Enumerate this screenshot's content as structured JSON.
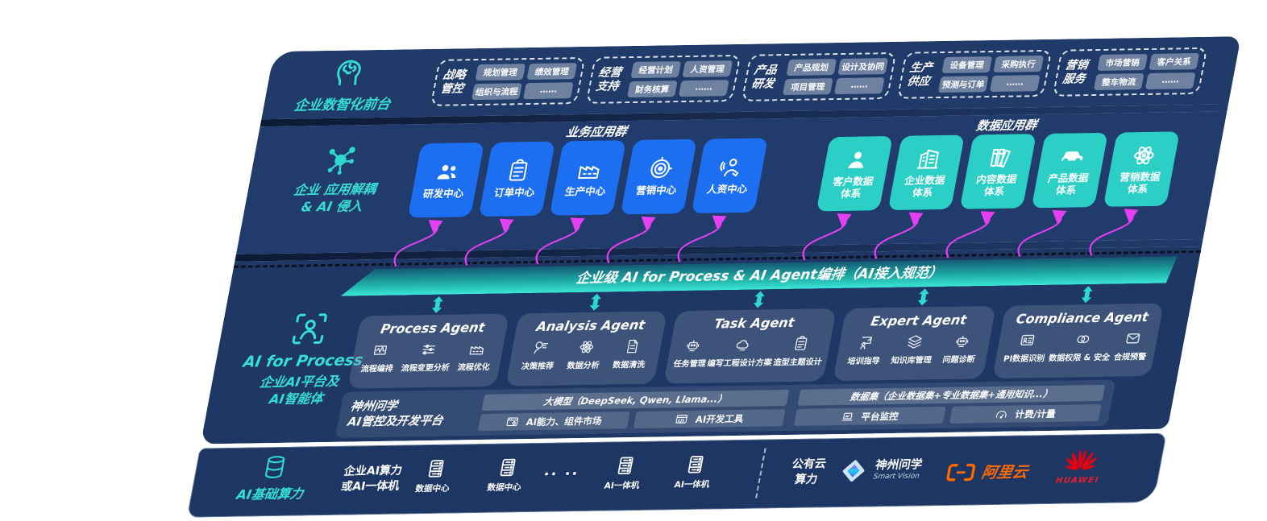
{
  "colors": {
    "panel_navy": "#203a69",
    "accent_teal": "#35dfd4",
    "app_blue": "#1d6ff2",
    "data_teal": "#2bcfc5",
    "arrow_magenta": "#e43ff2",
    "banner_teal_gradient": [
      "#155a74",
      "#3ce6d8"
    ],
    "aliyun_orange": "#ff6a00",
    "huawei_red": "#e60012"
  },
  "front_office": {
    "icon": "brain-icon",
    "label": "企业数智化前台",
    "groups": [
      {
        "title": "战略管控",
        "items": [
          "规划管理",
          "绩效管理",
          "组织与流程",
          "……"
        ]
      },
      {
        "title": "经营支持",
        "items": [
          "经营计划",
          "人资管理",
          "财务核算",
          "……"
        ]
      },
      {
        "title": "产品研发",
        "items": [
          "产品规划",
          "设计及协同",
          "项目管理",
          "……"
        ]
      },
      {
        "title": "生产供应",
        "items": [
          "设备管理",
          "采购执行",
          "预测与订单",
          "……"
        ]
      },
      {
        "title": "营销服务",
        "items": [
          "市场营销",
          "客户关系",
          "整车物流",
          "……"
        ]
      }
    ]
  },
  "decouple": {
    "icon": "network-icon",
    "label_line1": "企业 应用解耦",
    "label_line2": "& AI 侵入",
    "business_group_title": "业务应用群",
    "business_apps": [
      {
        "label": "研发中心",
        "icon": "team-icon"
      },
      {
        "label": "订单中心",
        "icon": "clipboard-icon"
      },
      {
        "label": "生产中心",
        "icon": "factory-icon"
      },
      {
        "label": "营销中心",
        "icon": "target-icon"
      },
      {
        "label": "人资中心",
        "icon": "hr-icon"
      }
    ],
    "data_group_title": "数据应用群",
    "data_systems": [
      {
        "label": "客户数据\n体系",
        "icon": "person-icon"
      },
      {
        "label": "企业数据\n体系",
        "icon": "building-icon"
      },
      {
        "label": "内容数据\n体系",
        "icon": "books-icon"
      },
      {
        "label": "产品数据\n体系",
        "icon": "car-icon"
      },
      {
        "label": "营销数据\n体系",
        "icon": "atom-icon"
      }
    ]
  },
  "ai_layer": {
    "icon": "person-frame-icon",
    "label_line1": "AI for Process",
    "label_line2": "企业AI平台及",
    "label_line3": "AI智能体",
    "orchestration_banner": "企业级 AI for Process & AI Agent编排（AI接入规范）",
    "agents": [
      {
        "title": "Process Agent",
        "items": [
          {
            "label": "流程编排",
            "icon": "wave-icon"
          },
          {
            "label": "流程变更分析",
            "icon": "sliders-icon"
          },
          {
            "label": "流程优化",
            "icon": "factory-icon"
          }
        ]
      },
      {
        "title": "Analysis Agent",
        "items": [
          {
            "label": "决策推荐",
            "icon": "chat-icon"
          },
          {
            "label": "数据分析",
            "icon": "atom-icon"
          },
          {
            "label": "数据清洗",
            "icon": "doc-icon"
          }
        ]
      },
      {
        "title": "Task Agent",
        "items": [
          {
            "label": "任务管理",
            "icon": "robot-icon"
          },
          {
            "label": "编写工程设计方案",
            "icon": "cloud-icon"
          },
          {
            "label": "造型主题设计",
            "icon": "clipboard-icon"
          }
        ]
      },
      {
        "title": "Expert Agent",
        "items": [
          {
            "label": "培训指导",
            "icon": "trainer-icon"
          },
          {
            "label": "知识库管理",
            "icon": "layers-icon"
          },
          {
            "label": "问题诊断",
            "icon": "robot-icon"
          }
        ]
      },
      {
        "title": "Compliance Agent",
        "items": [
          {
            "label": "PI数据识别",
            "icon": "card-icon"
          },
          {
            "label": "数据权限 & 安全",
            "icon": "link-icon"
          },
          {
            "label": "合规预警",
            "icon": "mail-icon"
          }
        ]
      }
    ],
    "platform": {
      "label_line1": "神州问学",
      "label_line2": "AI管控及开发平台",
      "model_bar": "大模型（DeepSeek, Qwen, Llama...）",
      "dataset_bar": "数据集（企业数据集+专业数据集+通用知识...）",
      "cells": [
        {
          "label": "AI能力、组件市场",
          "icon": "window-gear-icon"
        },
        {
          "label": "AI开发工具",
          "icon": "window-tools-icon"
        },
        {
          "label": "平台监控",
          "icon": "laptop-icon"
        },
        {
          "label": "计费/计量",
          "icon": "gauge-icon"
        }
      ]
    }
  },
  "infra": {
    "icon": "database-icon",
    "label": "AI基础算力",
    "compute_line1": "企业AI算力",
    "compute_line2": "或AI一体机",
    "nodes": [
      {
        "label": "数据中心",
        "icon": "server-icon"
      },
      {
        "label": "数据中心",
        "icon": "server-icon"
      },
      {
        "label": "AI一体机",
        "icon": "server-icon"
      },
      {
        "label": "AI一体机",
        "icon": "server-icon"
      }
    ],
    "ellipsis": "·· ··",
    "cloud_line1": "公有云",
    "cloud_line2": "算力",
    "vendors": {
      "smartvision": {
        "name": "神州问学",
        "sub": "Smart Vision",
        "icon": "diamond-icon"
      },
      "aliyun": {
        "name": "阿里云",
        "icon": "aliyun-icon"
      },
      "huawei": {
        "name": "HUAWEI",
        "icon": "huawei-icon"
      }
    }
  }
}
